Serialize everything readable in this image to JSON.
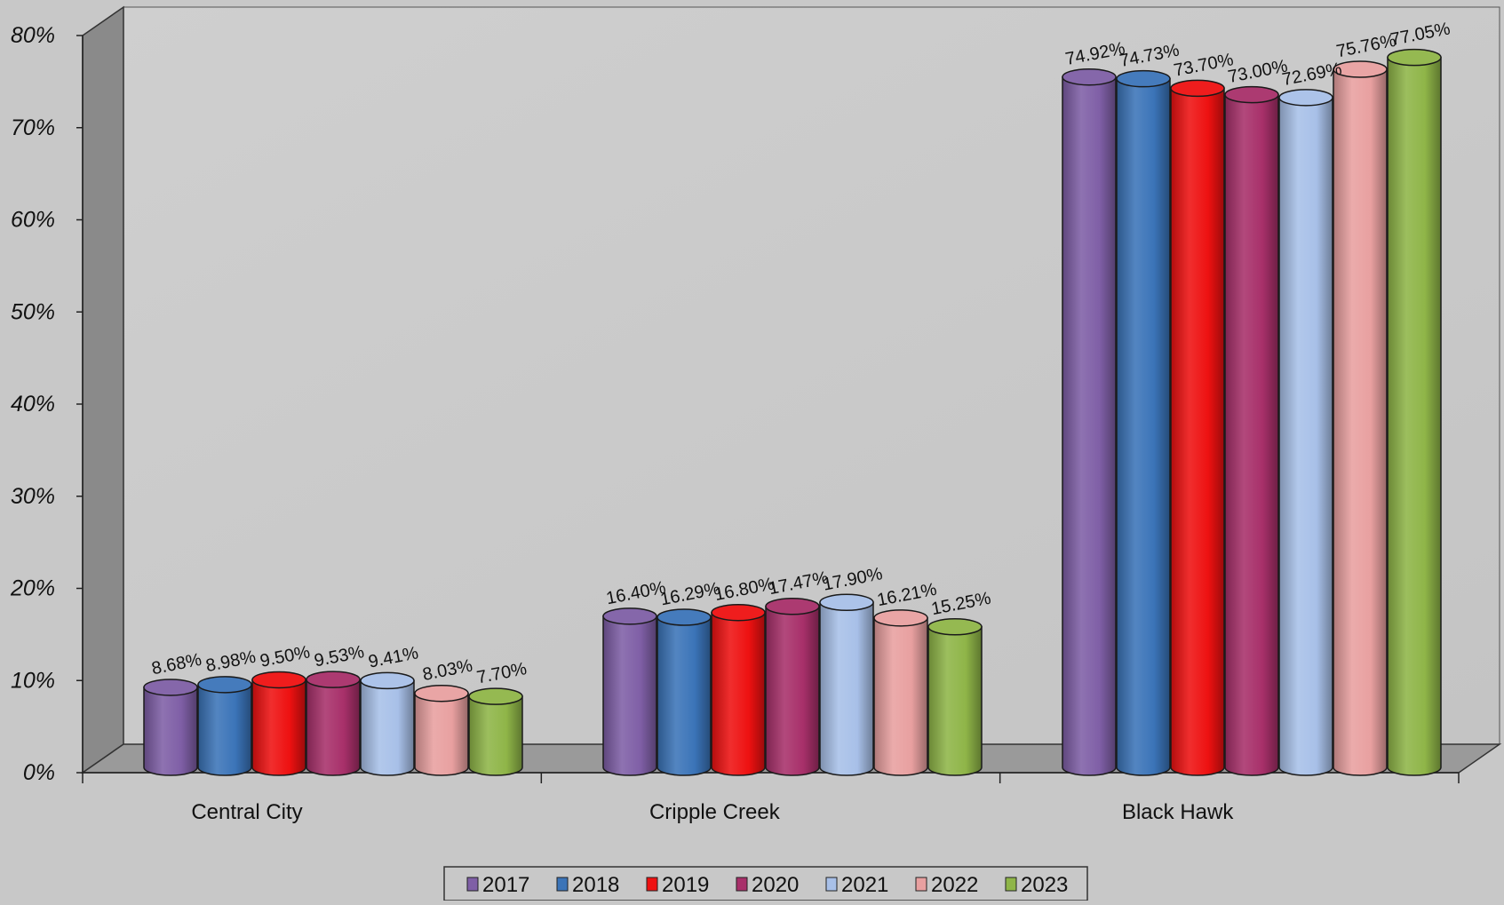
{
  "chart_data": {
    "type": "bar",
    "style": "3d-cylinder",
    "title": "",
    "xlabel": "",
    "ylabel": "",
    "ylim": [
      0,
      80
    ],
    "y_ticks": [
      "0%",
      "10%",
      "20%",
      "30%",
      "40%",
      "50%",
      "60%",
      "70%",
      "80%"
    ],
    "grid": false,
    "legend_position": "bottom",
    "categories": [
      "Central City",
      "Cripple Creek",
      "Black Hawk"
    ],
    "series": [
      {
        "name": "2017",
        "color": "#7f5fa6",
        "values": [
          8.68,
          16.4,
          74.92
        ],
        "labels": [
          "8.68%",
          "16.40%",
          "74.92%"
        ]
      },
      {
        "name": "2018",
        "color": "#3b74b8",
        "values": [
          8.98,
          16.29,
          74.73
        ],
        "labels": [
          "8.98%",
          "16.29%",
          "74.73%"
        ]
      },
      {
        "name": "2019",
        "color": "#ee1111",
        "values": [
          9.5,
          16.8,
          73.7
        ],
        "labels": [
          "9.50%",
          "16.80%",
          "73.70%"
        ]
      },
      {
        "name": "2020",
        "color": "#a8306a",
        "values": [
          9.53,
          17.47,
          73.0
        ],
        "labels": [
          "9.53%",
          "17.47%",
          "73.00%"
        ]
      },
      {
        "name": "2021",
        "color": "#a8c0e8",
        "values": [
          9.41,
          17.9,
          72.69
        ],
        "labels": [
          "9.41%",
          "17.90%",
          "72.69%"
        ]
      },
      {
        "name": "2022",
        "color": "#e8a0a0",
        "values": [
          8.03,
          16.21,
          75.76
        ],
        "labels": [
          "8.03%",
          "16.21%",
          "75.76%"
        ]
      },
      {
        "name": "2023",
        "color": "#8fb548",
        "values": [
          7.7,
          15.25,
          77.05
        ],
        "labels": [
          "7.70%",
          "15.25%",
          "77.05%"
        ]
      }
    ]
  }
}
